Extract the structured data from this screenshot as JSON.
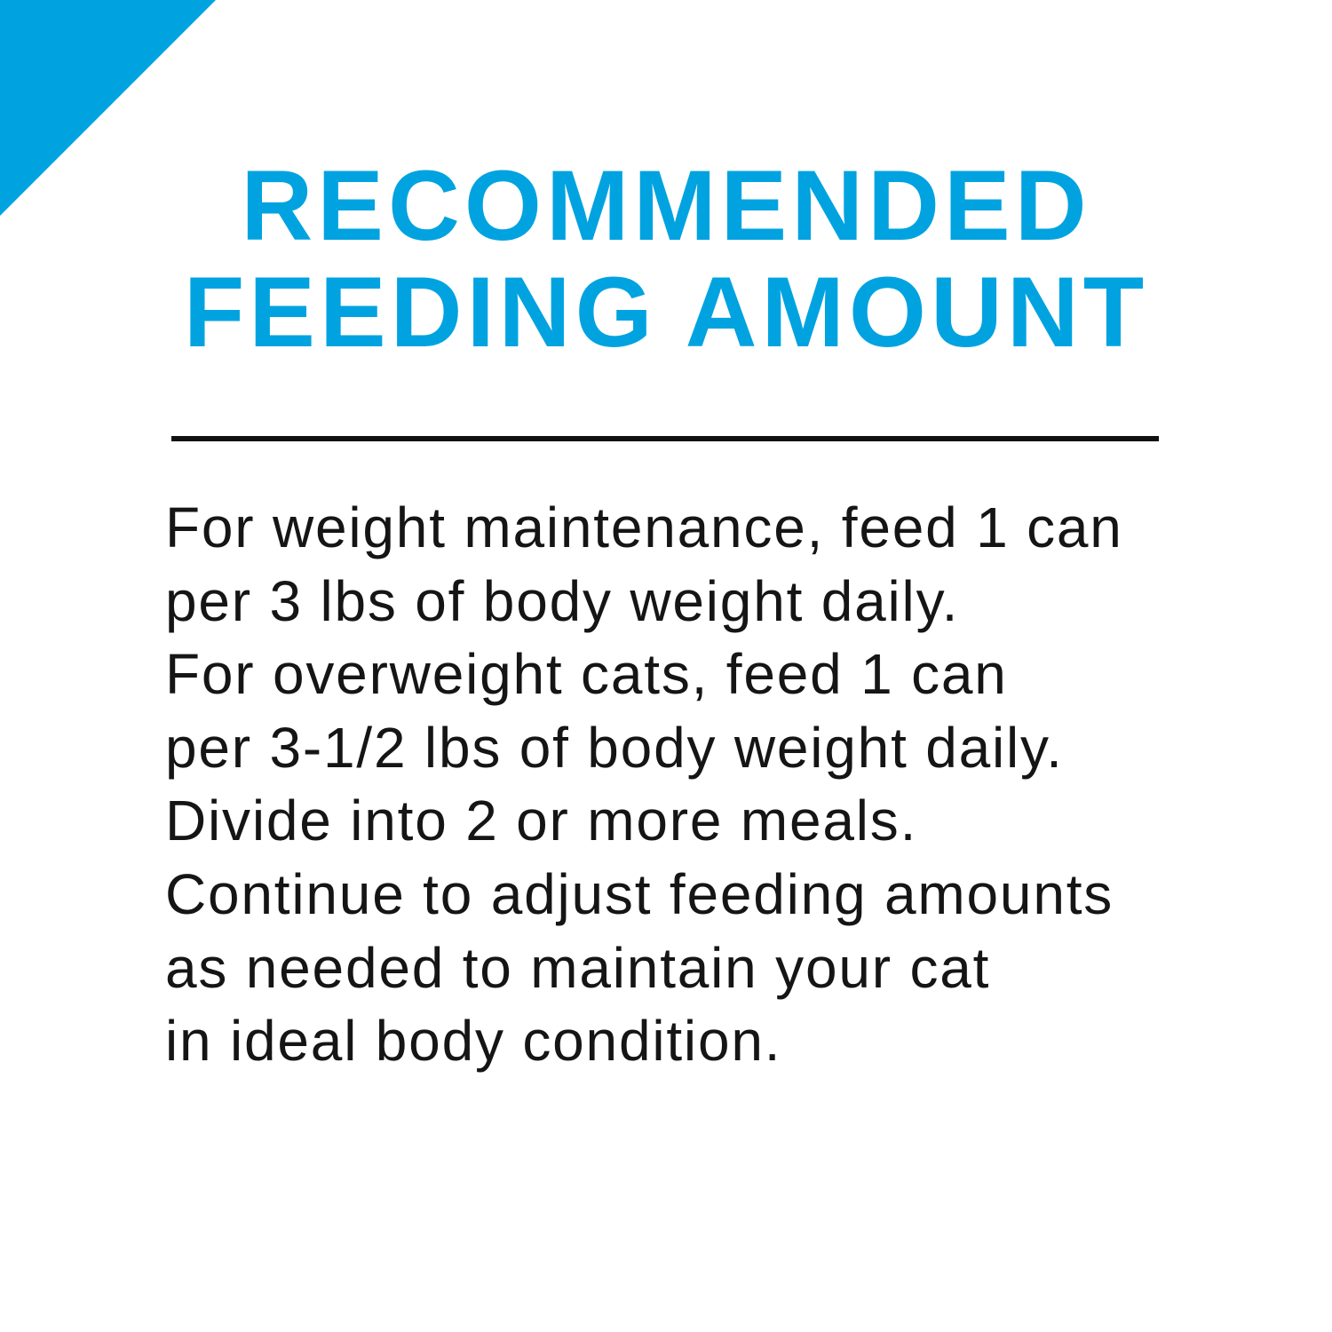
{
  "accent_color": "#00a3e0",
  "title": {
    "line1": "RECOMMENDED",
    "line2": "FEEDING AMOUNT"
  },
  "body_lines": [
    "For weight maintenance, feed 1 can",
    "per 3 lbs of body weight daily.",
    "For overweight cats, feed 1 can",
    "per 3-1/2 lbs of body weight daily.",
    "Divide into 2 or more meals.",
    "Continue to adjust feeding amounts",
    "as needed to maintain your cat",
    "in ideal body condition."
  ]
}
